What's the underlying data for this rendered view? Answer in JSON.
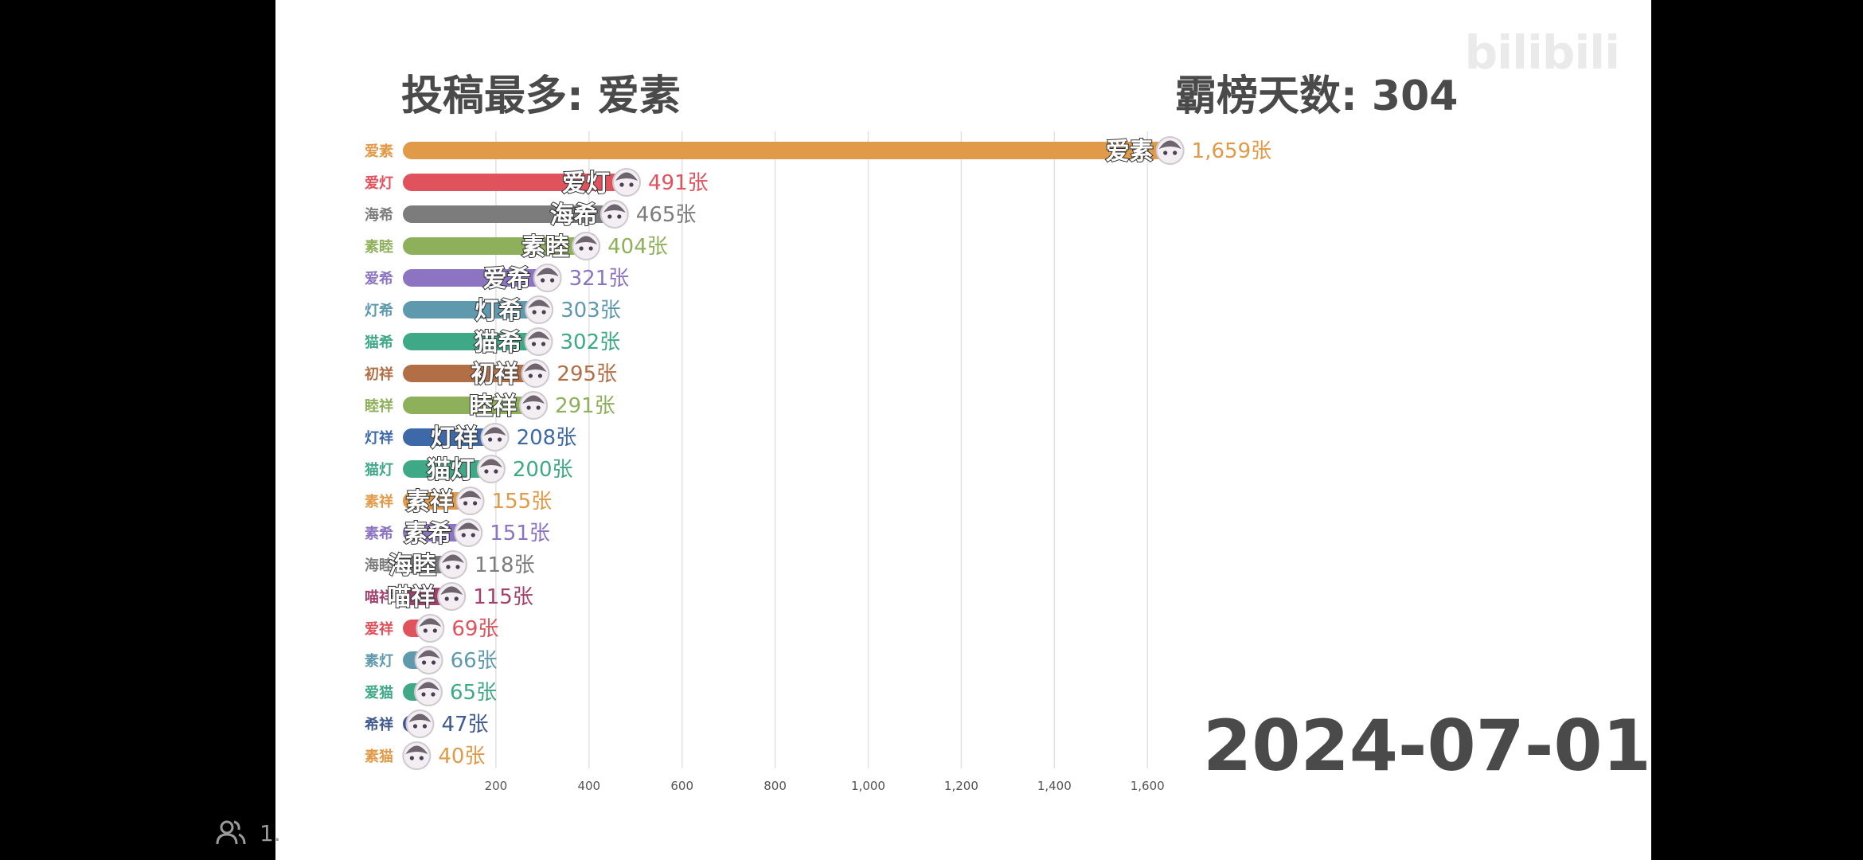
{
  "watermark": "bilibili",
  "headline_left": "投稿最多: 爱素",
  "headline_right": "霸榜天数: 304",
  "date": "2024-07-01",
  "viewer_count": "1.",
  "icons": {
    "viewer": "people-icon",
    "avatar": "character-avatar-icon"
  },
  "chart_data": {
    "type": "bar",
    "orientation": "horizontal",
    "title": "",
    "xlabel": "",
    "ylabel": "",
    "xlim": [
      0,
      1780
    ],
    "x_ticks": [
      200,
      400,
      600,
      800,
      1000,
      1200,
      1400,
      1600
    ],
    "x_tick_labels": [
      "200",
      "400",
      "600",
      "800",
      "1,000",
      "1,200",
      "1,400",
      "1,600"
    ],
    "grid": "vertical",
    "value_unit": "张",
    "categories": [
      "爱素",
      "爱灯",
      "海希",
      "素睦",
      "爱希",
      "灯希",
      "猫希",
      "初祥",
      "睦祥",
      "灯祥",
      "猫灯",
      "素祥",
      "素希",
      "海睦",
      "喵祥",
      "爱祥",
      "素灯",
      "爱猫",
      "希祥",
      "素猫"
    ],
    "values": [
      1659,
      491,
      465,
      404,
      321,
      303,
      302,
      295,
      291,
      208,
      200,
      155,
      151,
      118,
      115,
      69,
      66,
      65,
      47,
      40
    ],
    "value_labels": [
      "1,659张",
      "491张",
      "465张",
      "404张",
      "321张",
      "303张",
      "302张",
      "295张",
      "291张",
      "208张",
      "200张",
      "155张",
      "151张",
      "118张",
      "115张",
      "69张",
      "66张",
      "65张",
      "47张",
      "40张"
    ],
    "bar_tags": [
      "爱素",
      "爱灯",
      "海希",
      "素睦",
      "爱希",
      "灯希",
      "猫希",
      "初祥",
      "睦祥",
      "灯祥",
      "猫灯",
      "素祥",
      "素希",
      "海睦",
      "喵祥",
      "",
      "",
      "",
      "",
      ""
    ],
    "colors": [
      "#E09A48",
      "#E0525C",
      "#7C7C7C",
      "#8FB05B",
      "#8D74C2",
      "#5E99AE",
      "#3FA886",
      "#B26E45",
      "#8FB05B",
      "#3E69A8",
      "#3FA886",
      "#E09A48",
      "#8D74C2",
      "#7C7C7C",
      "#A3406E",
      "#E0525C",
      "#5E99AE",
      "#3FA886",
      "#3E5A90",
      "#E09A48"
    ]
  }
}
